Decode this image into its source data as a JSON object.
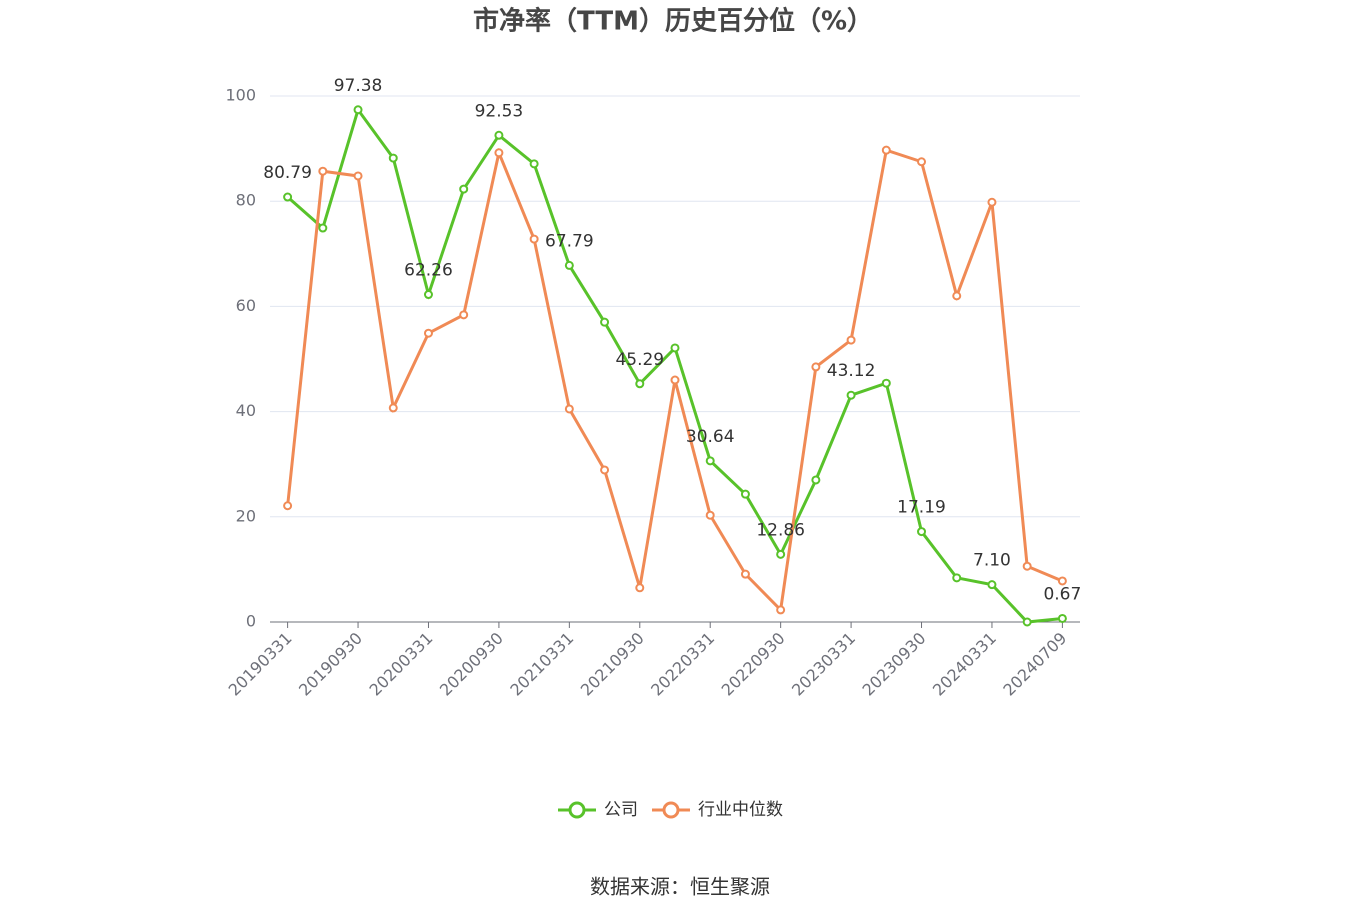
{
  "chart_data": {
    "type": "line",
    "title": "市净率（TTM）历史百分位（%）",
    "categories": [
      "20190331",
      null,
      "20190930",
      null,
      "20200331",
      null,
      "20200930",
      null,
      "20210331",
      null,
      "20210930",
      null,
      "20220331",
      null,
      "20220930",
      null,
      "20230331",
      null,
      "20230930",
      null,
      "20240331",
      null,
      "20240709"
    ],
    "series": [
      {
        "name": "公司",
        "color": "#58c22a",
        "values": [
          80.79,
          74.9,
          97.38,
          88.2,
          62.26,
          82.3,
          92.53,
          87.1,
          67.79,
          57.0,
          45.29,
          52.1,
          30.64,
          24.3,
          12.86,
          27.0,
          43.12,
          45.4,
          17.19,
          8.4,
          7.1,
          0.0,
          0.67
        ],
        "value_labels": [
          "80.79",
          null,
          "97.38",
          null,
          "62.26",
          null,
          "92.53",
          null,
          "67.79",
          null,
          "45.29",
          null,
          "30.64",
          null,
          "12.86",
          null,
          "43.12",
          null,
          "17.19",
          null,
          "7.10",
          null,
          "0.67"
        ]
      },
      {
        "name": "行业中位数",
        "color": "#f08a55",
        "values": [
          22.1,
          85.7,
          84.8,
          40.7,
          54.9,
          58.4,
          89.2,
          72.8,
          40.5,
          28.9,
          6.5,
          46.0,
          20.3,
          9.1,
          2.3,
          48.5,
          53.6,
          89.7,
          87.5,
          62.0,
          79.8,
          10.6,
          7.8
        ]
      }
    ],
    "ylim": [
      0,
      100
    ],
    "yticks": [
      0,
      20,
      40,
      60,
      80,
      100
    ],
    "grid": true,
    "legend": "bottom",
    "source": "数据来源：恒生聚源"
  }
}
